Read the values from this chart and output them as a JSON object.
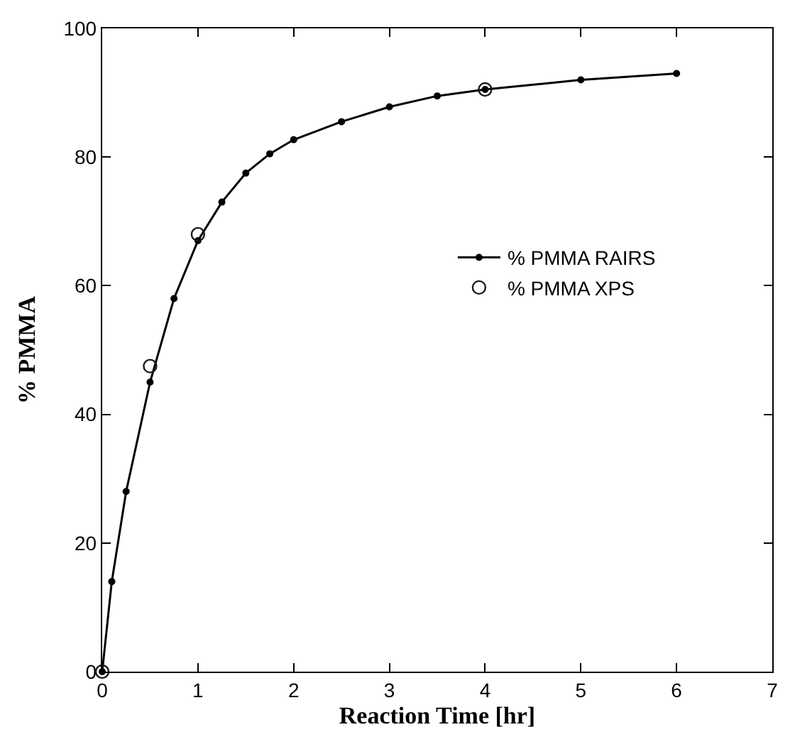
{
  "chart_data": {
    "type": "line",
    "xlabel": "Reaction Time [hr]",
    "ylabel": "% PMMA",
    "xlim": [
      0,
      7
    ],
    "xticks": [
      0,
      1,
      2,
      3,
      4,
      5,
      6,
      7
    ],
    "ylim": [
      0,
      100
    ],
    "yticks": [
      0,
      20,
      40,
      60,
      80,
      100
    ],
    "legend": "right",
    "line_style": "solid",
    "series": [
      {
        "name": "% PMMA RAIRS",
        "marker": "circle",
        "color": "#000000",
        "x": [
          0,
          0.1,
          0.25,
          0.5,
          0.75,
          1,
          1.25,
          1.5,
          1.75,
          2,
          2.5,
          3,
          3.5,
          4,
          5,
          6
        ],
        "values": [
          0,
          14,
          28,
          45,
          58,
          67,
          73,
          77.5,
          80.5,
          82.7,
          85.5,
          87.8,
          89.5,
          90.5,
          92,
          93
        ]
      },
      {
        "name": "% PMMA XPS",
        "type": "scatter",
        "marker": "circle",
        "color": "#1a1a1a",
        "x": [
          0,
          0.5,
          1,
          4
        ],
        "values": [
          0,
          47.5,
          68,
          90.5
        ]
      }
    ]
  }
}
